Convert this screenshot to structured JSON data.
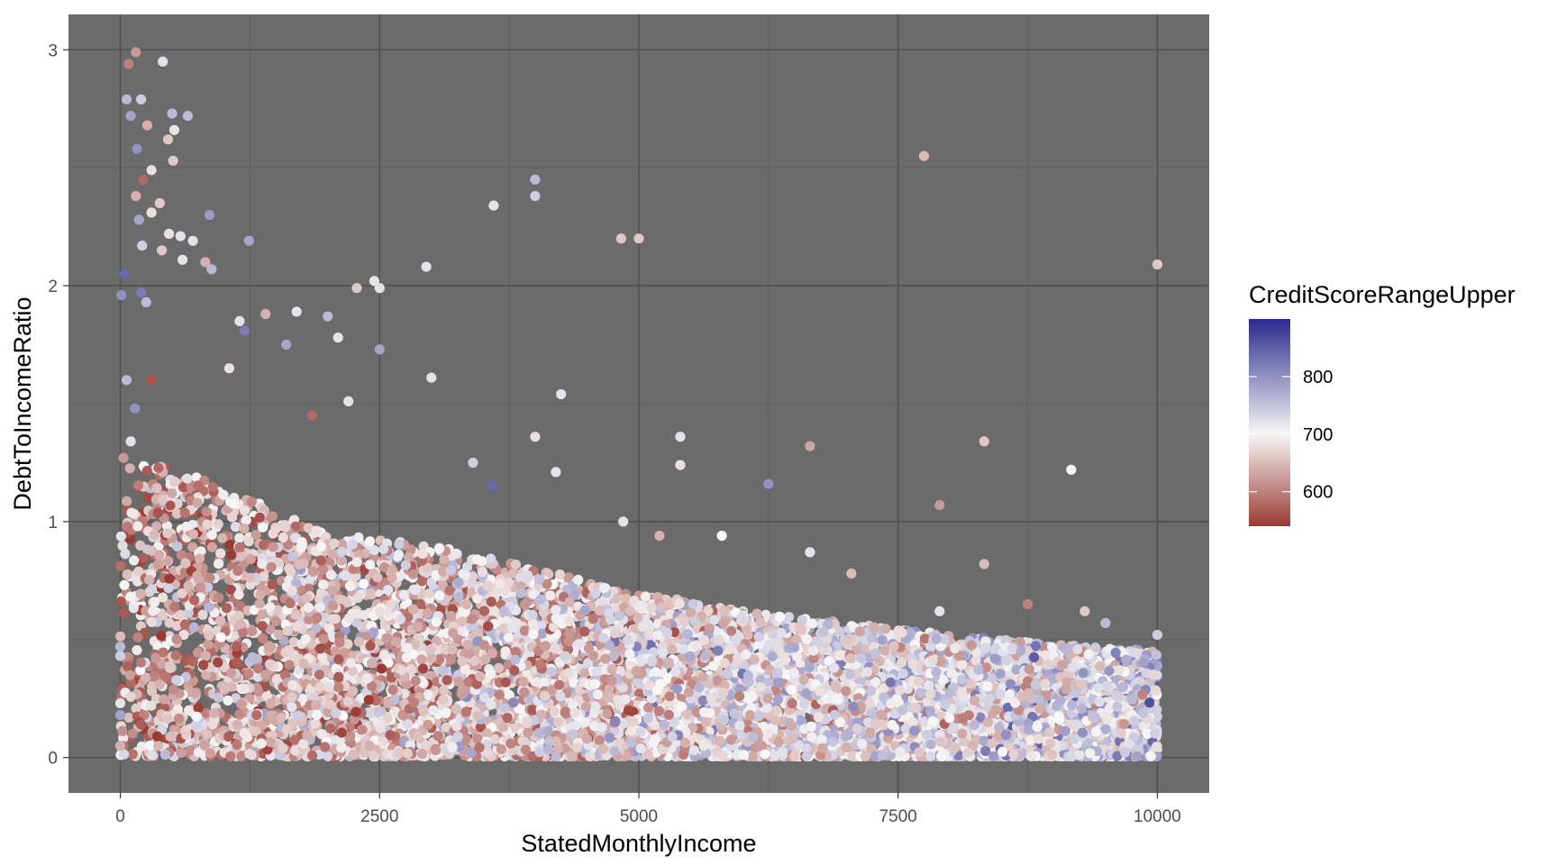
{
  "chart_data": {
    "type": "scatter",
    "title": "",
    "xlabel": "StatedMonthlyIncome",
    "ylabel": "DebtToIncomeRatio",
    "xlim": [
      -500,
      10500
    ],
    "ylim": [
      -0.15,
      3.15
    ],
    "x_ticks": [
      0,
      2500,
      5000,
      7500,
      10000
    ],
    "x_tick_labels": [
      "0",
      "2500",
      "5000",
      "7500",
      "10000"
    ],
    "y_ticks": [
      0,
      1,
      2,
      3
    ],
    "y_tick_labels": [
      "0",
      "1",
      "2",
      "3"
    ],
    "grid": true,
    "panel_background": "#6b6b6b",
    "color_scale": {
      "name": "CreditScoreRangeUpper",
      "low_color": "#9b3a33",
      "mid_color": "#f7f7f7",
      "high_color": "#2b2a8c",
      "domain": [
        540,
        900
      ],
      "midpoint": 700,
      "breaks": [
        600,
        700,
        800
      ],
      "break_labels": [
        "600",
        "700",
        "800"
      ],
      "legend_position": "right"
    },
    "outlier_points": [
      {
        "x": 150,
        "y": 2.99,
        "c": 620
      },
      {
        "x": 80,
        "y": 2.94,
        "c": 600
      },
      {
        "x": 410,
        "y": 2.95,
        "c": 720
      },
      {
        "x": 60,
        "y": 2.79,
        "c": 760
      },
      {
        "x": 200,
        "y": 2.79,
        "c": 740
      },
      {
        "x": 500,
        "y": 2.73,
        "c": 760
      },
      {
        "x": 100,
        "y": 2.72,
        "c": 780
      },
      {
        "x": 260,
        "y": 2.68,
        "c": 640
      },
      {
        "x": 520,
        "y": 2.66,
        "c": 720
      },
      {
        "x": 650,
        "y": 2.72,
        "c": 760
      },
      {
        "x": 460,
        "y": 2.62,
        "c": 660
      },
      {
        "x": 160,
        "y": 2.58,
        "c": 800
      },
      {
        "x": 300,
        "y": 2.49,
        "c": 680
      },
      {
        "x": 220,
        "y": 2.45,
        "c": 580
      },
      {
        "x": 510,
        "y": 2.53,
        "c": 660
      },
      {
        "x": 380,
        "y": 2.35,
        "c": 660
      },
      {
        "x": 150,
        "y": 2.38,
        "c": 640
      },
      {
        "x": 300,
        "y": 2.31,
        "c": 680
      },
      {
        "x": 860,
        "y": 2.3,
        "c": 790
      },
      {
        "x": 180,
        "y": 2.28,
        "c": 780
      },
      {
        "x": 470,
        "y": 2.22,
        "c": 680
      },
      {
        "x": 580,
        "y": 2.21,
        "c": 720
      },
      {
        "x": 700,
        "y": 2.19,
        "c": 720
      },
      {
        "x": 1240,
        "y": 2.19,
        "c": 780
      },
      {
        "x": 210,
        "y": 2.17,
        "c": 740
      },
      {
        "x": 400,
        "y": 2.15,
        "c": 660
      },
      {
        "x": 600,
        "y": 2.11,
        "c": 720
      },
      {
        "x": 820,
        "y": 2.1,
        "c": 640
      },
      {
        "x": 880,
        "y": 2.07,
        "c": 760
      },
      {
        "x": 40,
        "y": 2.05,
        "c": 840
      },
      {
        "x": 200,
        "y": 1.97,
        "c": 820
      },
      {
        "x": 250,
        "y": 1.93,
        "c": 760
      },
      {
        "x": 10,
        "y": 1.96,
        "c": 800
      },
      {
        "x": 1150,
        "y": 1.85,
        "c": 720
      },
      {
        "x": 1700,
        "y": 1.89,
        "c": 720
      },
      {
        "x": 1200,
        "y": 1.81,
        "c": 820
      },
      {
        "x": 2000,
        "y": 1.87,
        "c": 760
      },
      {
        "x": 2100,
        "y": 1.78,
        "c": 720
      },
      {
        "x": 1400,
        "y": 1.88,
        "c": 640
      },
      {
        "x": 2280,
        "y": 1.99,
        "c": 660
      },
      {
        "x": 2450,
        "y": 2.02,
        "c": 720
      },
      {
        "x": 2500,
        "y": 1.99,
        "c": 680
      },
      {
        "x": 2950,
        "y": 2.08,
        "c": 720
      },
      {
        "x": 3000,
        "y": 1.61,
        "c": 720
      },
      {
        "x": 2500,
        "y": 1.73,
        "c": 780
      },
      {
        "x": 3600,
        "y": 2.34,
        "c": 680
      },
      {
        "x": 4000,
        "y": 2.45,
        "c": 760
      },
      {
        "x": 4000,
        "y": 2.38,
        "c": 740
      },
      {
        "x": 4830,
        "y": 2.2,
        "c": 660
      },
      {
        "x": 5000,
        "y": 2.2,
        "c": 660
      },
      {
        "x": 7750,
        "y": 2.55,
        "c": 650
      },
      {
        "x": 10000,
        "y": 2.09,
        "c": 660
      },
      {
        "x": 4250,
        "y": 1.54,
        "c": 720
      },
      {
        "x": 4000,
        "y": 1.36,
        "c": 680
      },
      {
        "x": 5400,
        "y": 1.36,
        "c": 720
      },
      {
        "x": 5400,
        "y": 1.24,
        "c": 680
      },
      {
        "x": 6250,
        "y": 1.16,
        "c": 800
      },
      {
        "x": 6650,
        "y": 1.32,
        "c": 630
      },
      {
        "x": 8330,
        "y": 1.34,
        "c": 660
      },
      {
        "x": 9170,
        "y": 1.22,
        "c": 700
      },
      {
        "x": 7900,
        "y": 1.07,
        "c": 620
      },
      {
        "x": 4200,
        "y": 1.21,
        "c": 720
      },
      {
        "x": 3580,
        "y": 1.15,
        "c": 840
      },
      {
        "x": 3400,
        "y": 1.25,
        "c": 740
      },
      {
        "x": 5800,
        "y": 0.94,
        "c": 700
      },
      {
        "x": 6650,
        "y": 0.87,
        "c": 720
      },
      {
        "x": 7050,
        "y": 0.78,
        "c": 650
      },
      {
        "x": 8330,
        "y": 0.82,
        "c": 650
      },
      {
        "x": 5200,
        "y": 0.94,
        "c": 640
      },
      {
        "x": 4850,
        "y": 1.0,
        "c": 720
      },
      {
        "x": 1850,
        "y": 1.45,
        "c": 580
      },
      {
        "x": 2200,
        "y": 1.51,
        "c": 720
      },
      {
        "x": 1600,
        "y": 1.75,
        "c": 780
      },
      {
        "x": 1050,
        "y": 1.65,
        "c": 680
      },
      {
        "x": 300,
        "y": 1.6,
        "c": 560
      },
      {
        "x": 60,
        "y": 1.6,
        "c": 760
      },
      {
        "x": 140,
        "y": 1.48,
        "c": 800
      },
      {
        "x": 100,
        "y": 1.34,
        "c": 720
      },
      {
        "x": 30,
        "y": 1.27,
        "c": 620
      },
      {
        "x": 0,
        "y": 0.05,
        "c": 640
      },
      {
        "x": 0,
        "y": 0.23,
        "c": 720
      },
      {
        "x": 0,
        "y": 0.18,
        "c": 780
      },
      {
        "x": 0,
        "y": 0.43,
        "c": 740
      },
      {
        "x": 0,
        "y": 0.47,
        "c": 760
      },
      {
        "x": 9300,
        "y": 0.62,
        "c": 660
      },
      {
        "x": 8750,
        "y": 0.65,
        "c": 600
      },
      {
        "x": 7900,
        "y": 0.62,
        "c": 720
      },
      {
        "x": 10000,
        "y": 0.52,
        "c": 740
      },
      {
        "x": 9500,
        "y": 0.57,
        "c": 760
      }
    ],
    "dense_cloud": {
      "description_values": "bulk of points: x from 0 to 10000, y mostly below 1.0, upper envelope decreasing from about 1.2 at x=500 to about 0.5 at x=10000",
      "x_range": [
        0,
        10000
      ],
      "y_envelope": [
        [
          300,
          1.25
        ],
        [
          1000,
          1.15
        ],
        [
          2000,
          0.95
        ],
        [
          3000,
          0.9
        ],
        [
          4000,
          0.8
        ],
        [
          5000,
          0.7
        ],
        [
          6000,
          0.62
        ],
        [
          7000,
          0.57
        ],
        [
          8000,
          0.52
        ],
        [
          9000,
          0.48
        ],
        [
          10000,
          0.45
        ]
      ],
      "point_count": 9000
    }
  }
}
